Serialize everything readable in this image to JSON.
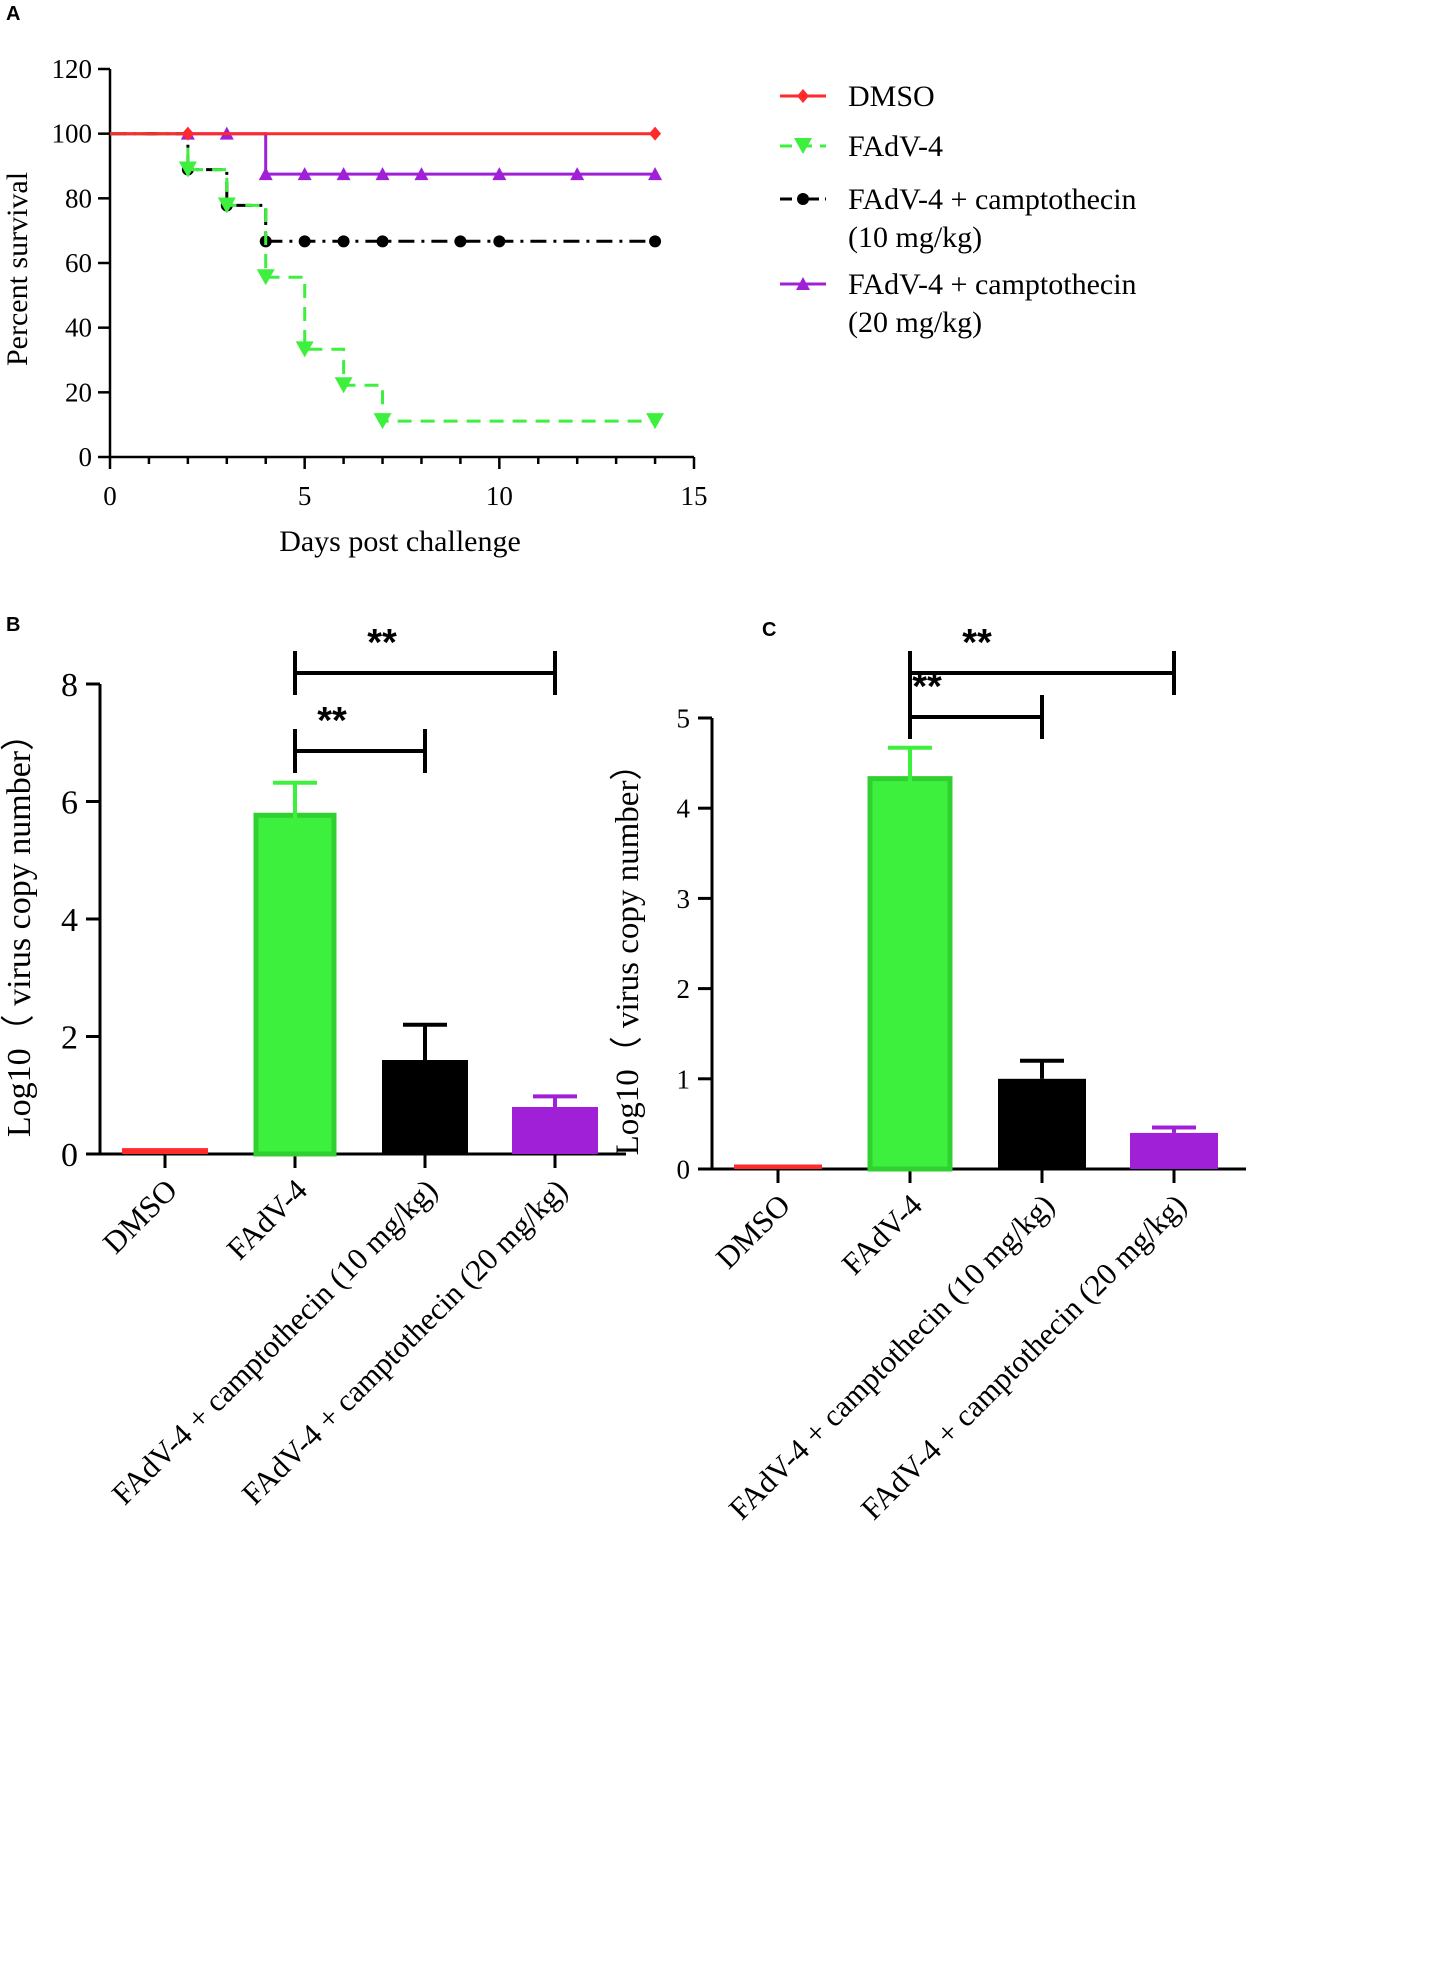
{
  "chart_data": [
    {
      "panel": "A",
      "type": "line",
      "subtype": "survival-step",
      "xlabel": "Days post challenge",
      "ylabel": "Percent survival",
      "xlim": [
        0,
        15
      ],
      "ylim": [
        0,
        120
      ],
      "xticks": [
        0,
        5,
        10,
        15
      ],
      "yticks": [
        0,
        20,
        40,
        60,
        80,
        100,
        120
      ],
      "legend_position": "right",
      "series": [
        {
          "name": "DMSO",
          "legend_lines": [
            "DMSO"
          ],
          "color": "#ff2a2a",
          "dash": "solid",
          "marker": "diamond",
          "steps": [
            [
              0,
              100
            ],
            [
              14,
              100
            ]
          ],
          "markers": [
            [
              2,
              100
            ],
            [
              14,
              100
            ]
          ]
        },
        {
          "name": "FAdV-4",
          "legend_lines": [
            "FAdV-4"
          ],
          "color": "#3ef03e",
          "dash": "dashed",
          "marker": "triangle-down",
          "steps": [
            [
              0,
              100
            ],
            [
              2,
              88.9
            ],
            [
              3,
              77.8
            ],
            [
              4,
              55.6
            ],
            [
              5,
              33.3
            ],
            [
              6,
              22.2
            ],
            [
              7,
              11.1
            ],
            [
              14,
              11.1
            ]
          ],
          "markers": [
            [
              2,
              88.9
            ],
            [
              3,
              77.8
            ],
            [
              4,
              55.6
            ],
            [
              5,
              33.3
            ],
            [
              6,
              22.2
            ],
            [
              7,
              11.1
            ],
            [
              14,
              11.1
            ]
          ]
        },
        {
          "name": "FAdV-4 + camptothecin (10 mg/kg)",
          "legend_lines": [
            "FAdV-4 + camptothecin",
            "(10 mg/kg)"
          ],
          "color": "#000000",
          "dash": "dashdot",
          "marker": "circle",
          "steps": [
            [
              0,
              100
            ],
            [
              2,
              88.9
            ],
            [
              3,
              77.8
            ],
            [
              4,
              66.7
            ],
            [
              14,
              66.7
            ]
          ],
          "markers": [
            [
              2,
              88.9
            ],
            [
              3,
              77.8
            ],
            [
              4,
              66.7
            ],
            [
              5,
              66.7
            ],
            [
              6,
              66.7
            ],
            [
              7,
              66.7
            ],
            [
              9,
              66.7
            ],
            [
              10,
              66.7
            ],
            [
              14,
              66.7
            ]
          ]
        },
        {
          "name": "FAdV-4 + camptothecin (20 mg/kg)",
          "legend_lines": [
            "FAdV-4 + camptothecin",
            "(20 mg/kg)"
          ],
          "color": "#a020d8",
          "dash": "solid",
          "marker": "triangle-up",
          "steps": [
            [
              0,
              100
            ],
            [
              4,
              100
            ],
            [
              4,
              87.5
            ],
            [
              14,
              87.5
            ]
          ],
          "markers": [
            [
              2,
              100
            ],
            [
              3,
              100
            ],
            [
              4,
              87.5
            ],
            [
              5,
              87.5
            ],
            [
              6,
              87.5
            ],
            [
              7,
              87.5
            ],
            [
              8,
              87.5
            ],
            [
              10,
              87.5
            ],
            [
              12,
              87.5
            ],
            [
              14,
              87.5
            ]
          ]
        }
      ]
    },
    {
      "panel": "B",
      "type": "bar",
      "ylabel": "Log10（ virus copy number）",
      "ylim": [
        0,
        8
      ],
      "yticks": [
        0,
        2,
        4,
        6,
        8
      ],
      "categories": [
        "DMSO",
        "FAdV-4",
        "FAdV-4 + camptothecin (10 mg/kg)",
        "FAdV-4 + camptothecin (20 mg/kg)"
      ],
      "values": [
        0.1,
        5.8,
        1.6,
        0.8
      ],
      "errors": [
        0,
        0.52,
        0.6,
        0.18
      ],
      "colors": [
        "#ff2a2a",
        "#3ef03e",
        "#000000",
        "#a020d8"
      ],
      "significance": [
        {
          "from": 1,
          "to": 2,
          "label": "**"
        },
        {
          "from": 1,
          "to": 3,
          "label": "**"
        }
      ]
    },
    {
      "panel": "C",
      "type": "bar",
      "ylabel": "Log10（ virus copy number）",
      "ylim": [
        0,
        5
      ],
      "yticks": [
        0,
        1,
        2,
        3,
        4,
        5
      ],
      "categories": [
        "DMSO",
        "FAdV-4",
        "FAdV-4 + camptothecin (10 mg/kg)",
        "FAdV-4 + camptothecin (20 mg/kg)"
      ],
      "values": [
        0.05,
        4.35,
        1.0,
        0.4
      ],
      "errors": [
        0,
        0.32,
        0.2,
        0.06
      ],
      "colors": [
        "#ff2a2a",
        "#3ef03e",
        "#000000",
        "#a020d8"
      ],
      "significance": [
        {
          "from": 1,
          "to": 2,
          "label": "**"
        },
        {
          "from": 1,
          "to": 3,
          "label": "**"
        }
      ]
    }
  ]
}
